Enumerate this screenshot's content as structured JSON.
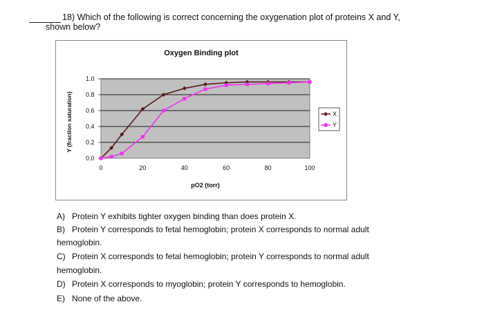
{
  "question": {
    "number": "18)",
    "text_line1": "Which of the following is correct concerning the oxygenation plot of proteins X and Y,",
    "text_line2": "shown below?"
  },
  "chart_data": {
    "type": "line",
    "title": "Oxygen Binding plot",
    "xlabel": "pO2 (torr)",
    "ylabel": "Y (fraction saturation)",
    "xlim": [
      0,
      100
    ],
    "ylim": [
      0,
      1.0
    ],
    "x_ticks": [
      "0",
      "20",
      "40",
      "60",
      "80",
      "100"
    ],
    "y_ticks": [
      "0.0",
      "0.2",
      "0.4",
      "0.6",
      "0.8",
      "1.0"
    ],
    "grid": true,
    "legend_position": "right",
    "colors": {
      "plot_bg": "#c0c0c0",
      "X": "#5a1a1a",
      "Y": "#ee33ee"
    },
    "series": [
      {
        "name": "X",
        "x": [
          0,
          5,
          10,
          20,
          30,
          40,
          50,
          60,
          70,
          80,
          90,
          100
        ],
        "y": [
          0.0,
          0.13,
          0.3,
          0.62,
          0.8,
          0.88,
          0.93,
          0.95,
          0.96,
          0.96,
          0.96,
          0.96
        ]
      },
      {
        "name": "Y",
        "x": [
          0,
          5,
          10,
          20,
          30,
          40,
          50,
          60,
          70,
          80,
          90,
          100
        ],
        "y": [
          0.0,
          0.02,
          0.06,
          0.27,
          0.6,
          0.75,
          0.87,
          0.92,
          0.93,
          0.94,
          0.95,
          0.96
        ]
      }
    ]
  },
  "options": [
    {
      "label": "A)",
      "text": "Protein Y exhibits tighter oxygen binding than does protein X."
    },
    {
      "label": "B)",
      "text": "Protein Y corresponds to fetal hemoglobin; protein X corresponds to normal adult",
      "cont": "hemoglobin."
    },
    {
      "label": "C)",
      "text": "Protein X corresponds to fetal hemoglobin; protein Y corresponds to normal adult",
      "cont": "hemoglobin."
    },
    {
      "label": "D)",
      "text": "Protein X corresponds to myoglobin; protein Y corresponds to hemoglobin."
    },
    {
      "label": "E)",
      "text": "None of the above."
    }
  ]
}
